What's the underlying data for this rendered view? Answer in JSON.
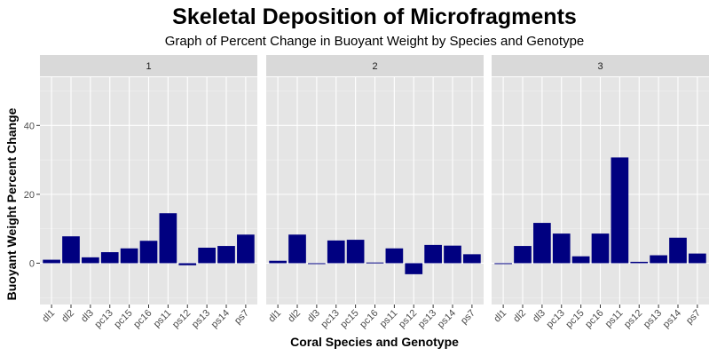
{
  "colors": {
    "panel_background": "#e5e5e5",
    "grid_major": "#ffffff",
    "strip_background": "#d9d9d9",
    "bar_fill": "#000080",
    "tick_text": "#4d4d4d"
  },
  "chart_data": {
    "type": "bar",
    "title": "Skeletal Deposition of Microfragments",
    "subtitle": "Graph of Percent Change in Buoyant Weight by Species and Genotype",
    "xlabel": "Coral Species and Genotype",
    "ylabel": "Buoyant Weight Percent Change",
    "ylim": [
      -12,
      54
    ],
    "yticks": [
      0,
      20,
      40
    ],
    "grid": true,
    "legend": "none",
    "categories": [
      "dl1",
      "dl2",
      "dl3",
      "pc13",
      "pc15",
      "pc16",
      "ps11",
      "ps12",
      "ps13",
      "ps14",
      "ps7"
    ],
    "facets": [
      {
        "label": "1",
        "values": [
          1.0,
          7.8,
          1.7,
          3.2,
          4.3,
          6.5,
          14.5,
          -0.6,
          4.5,
          5.0,
          8.3
        ]
      },
      {
        "label": "2",
        "values": [
          0.7,
          8.3,
          -0.2,
          6.6,
          6.8,
          0.2,
          4.3,
          -3.2,
          5.3,
          5.1,
          2.6
        ]
      },
      {
        "label": "3",
        "values": [
          -0.2,
          5.0,
          11.7,
          8.6,
          2.0,
          8.6,
          30.7,
          0.4,
          2.3,
          7.4,
          2.8
        ]
      }
    ]
  }
}
